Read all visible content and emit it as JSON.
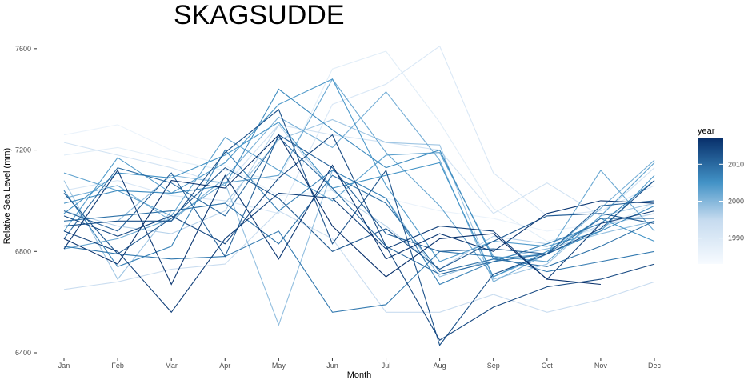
{
  "chart_data": {
    "type": "line",
    "title": "SKAGSUDDE",
    "xlabel": "Month",
    "ylabel": "Relative Sea Level (mm)",
    "categories": [
      "Jan",
      "Feb",
      "Mar",
      "Apr",
      "May",
      "Jun",
      "Jul",
      "Aug",
      "Sep",
      "Oct",
      "Nov",
      "Dec"
    ],
    "ylim": [
      6400,
      7650
    ],
    "yticks": [
      6400,
      6800,
      7200,
      7600
    ],
    "grid": false,
    "legend": {
      "title": "year",
      "placement": "right",
      "range": [
        1983,
        2017
      ],
      "ticks": [
        1990,
        2000,
        2010
      ],
      "color_low": "#f7fbff",
      "color_high": "#08306b"
    },
    "series": [
      {
        "year": 1986,
        "values": [
          7260,
          7300,
          7200,
          7140,
          7020,
          7040,
          7010,
          6960,
          6930,
          6880,
          6910,
          6950
        ]
      },
      {
        "year": 1988,
        "values": [
          7180,
          7210,
          7160,
          7120,
          7080,
          7520,
          7590,
          7310,
          6970,
          6840,
          6890,
          6990
        ]
      },
      {
        "year": 1990,
        "values": [
          7040,
          7080,
          7020,
          7000,
          6950,
          7380,
          7460,
          7610,
          7110,
          6940,
          6960,
          7060
        ]
      },
      {
        "year": 1992,
        "values": [
          7230,
          7180,
          7130,
          7060,
          7300,
          7260,
          7230,
          7200,
          6950,
          7070,
          6940,
          7130
        ]
      },
      {
        "year": 1994,
        "values": [
          6650,
          6680,
          6730,
          6750,
          6960,
          6850,
          6560,
          6560,
          6630,
          6560,
          6610,
          6680
        ]
      },
      {
        "year": 1996,
        "values": [
          6960,
          6900,
          6870,
          6960,
          7300,
          7040,
          6900,
          6730,
          6860,
          6830,
          6900,
          6950
        ]
      },
      {
        "year": 1998,
        "values": [
          7080,
          6690,
          6960,
          6990,
          7240,
          7320,
          7230,
          7220,
          6690,
          6750,
          6940,
          6990
        ]
      },
      {
        "year": 1999,
        "values": [
          6900,
          6920,
          7100,
          7070,
          6510,
          7120,
          7010,
          6700,
          6770,
          6810,
          6870,
          6920
        ]
      },
      {
        "year": 2001,
        "values": [
          7010,
          7060,
          6920,
          7090,
          7330,
          7210,
          7430,
          7160,
          6680,
          6790,
          6970,
          7160
        ]
      },
      {
        "year": 2002,
        "values": [
          6810,
          6850,
          6930,
          7070,
          7100,
          7480,
          7190,
          6980,
          6700,
          6790,
          7120,
          6880
        ]
      },
      {
        "year": 2003,
        "values": [
          7110,
          7040,
          6940,
          7250,
          7120,
          7000,
          7180,
          7190,
          6780,
          6760,
          6940,
          7150
        ]
      },
      {
        "year": 2004,
        "values": [
          6880,
          7170,
          7030,
          7150,
          7380,
          7480,
          7060,
          6760,
          6840,
          6820,
          6880,
          7100
        ]
      },
      {
        "year": 2005,
        "values": [
          6950,
          7110,
          7090,
          7180,
          7310,
          7050,
          7100,
          7150,
          6700,
          6800,
          6930,
          6840
        ]
      },
      {
        "year": 2006,
        "values": [
          6990,
          7040,
          7030,
          7060,
          7440,
          7280,
          7130,
          7200,
          6770,
          6790,
          6880,
          6980
        ]
      },
      {
        "year": 2007,
        "values": [
          7040,
          6740,
          6820,
          7200,
          6960,
          7120,
          7010,
          6670,
          6760,
          6830,
          6910,
          7080
        ]
      },
      {
        "year": 2008,
        "values": [
          6820,
          6790,
          6770,
          6780,
          6880,
          6560,
          6590,
          6800,
          6780,
          6720,
          6760,
          6800
        ]
      },
      {
        "year": 2009,
        "values": [
          6920,
          6940,
          6960,
          6990,
          6830,
          7100,
          6990,
          6720,
          6770,
          6740,
          6820,
          6920
        ]
      },
      {
        "year": 2010,
        "values": [
          6850,
          7130,
          7070,
          6940,
          7250,
          7050,
          6820,
          6710,
          6760,
          6790,
          6930,
          6930
        ]
      },
      {
        "year": 2011,
        "values": [
          6960,
          6880,
          7110,
          6780,
          7260,
          7130,
          6870,
          6800,
          6810,
          6790,
          6980,
          7000
        ]
      },
      {
        "year": 2012,
        "values": [
          7030,
          6790,
          6930,
          7130,
          7010,
          6800,
          6890,
          6730,
          6840,
          6940,
          6950,
          6910
        ]
      },
      {
        "year": 2013,
        "values": [
          6900,
          6920,
          6920,
          7190,
          7360,
          6830,
          7120,
          6430,
          6710,
          6790,
          6890,
          7080
        ]
      },
      {
        "year": 2014,
        "values": [
          6940,
          6860,
          6940,
          6830,
          7090,
          7260,
          6820,
          6450,
          6580,
          6660,
          6690,
          6750
        ]
      },
      {
        "year": 2015,
        "values": [
          6880,
          6800,
          6560,
          6850,
          7030,
          7010,
          6810,
          6900,
          6880,
          6690,
          6910,
          6960
        ]
      },
      {
        "year": 2016,
        "values": [
          6810,
          7120,
          6670,
          7100,
          6770,
          7140,
          6770,
          6870,
          6800,
          6950,
          7000,
          6990
        ]
      },
      {
        "year": 2017,
        "values": [
          6850,
          6750,
          7080,
          7050,
          7260,
          6900,
          6700,
          6850,
          6870,
          6690,
          6670,
          null
        ]
      }
    ]
  }
}
